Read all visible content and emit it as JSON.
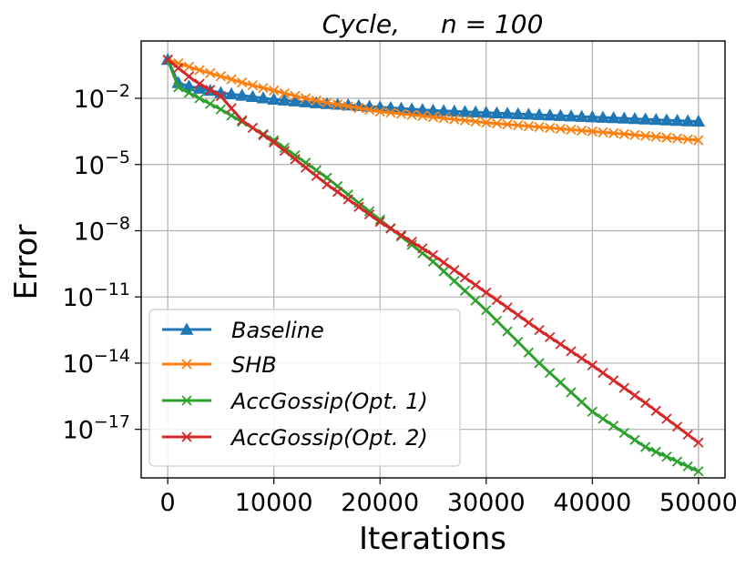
{
  "chart_data": {
    "type": "line",
    "title_italic_part": "Cycle,",
    "title_math_part": "n = 100",
    "xlabel": "Iterations",
    "ylabel": "Error",
    "y_scale": "log",
    "xlim": [
      -2500,
      52500
    ],
    "ylim_log10": [
      -19.2,
      0.6
    ],
    "x_ticks": [
      0,
      10000,
      20000,
      30000,
      40000,
      50000
    ],
    "x_tick_labels": [
      "0",
      "10000",
      "20000",
      "30000",
      "40000",
      "50000"
    ],
    "y_tick_exponents": [
      -2,
      -5,
      -8,
      -11,
      -14,
      -17
    ],
    "y_tick_labels": [
      "10−2",
      "10−5",
      "10−8",
      "10−11",
      "10−14",
      "10−17"
    ],
    "grid": true,
    "legend_placement": "lower-left",
    "series": [
      {
        "name": "Baseline",
        "color": "#1f77b4",
        "marker": "triangle",
        "x": [
          0,
          1000,
          2000,
          3000,
          4000,
          5000,
          10000,
          15000,
          20000,
          25000,
          30000,
          35000,
          40000,
          45000,
          50000
        ],
        "log10_y": [
          -0.25,
          -1.3,
          -1.45,
          -1.55,
          -1.65,
          -1.75,
          -2.05,
          -2.25,
          -2.4,
          -2.55,
          -2.65,
          -2.75,
          -2.85,
          -2.95,
          -3.05
        ]
      },
      {
        "name": "SHB",
        "color": "#ff7f0e",
        "marker": "x",
        "x": [
          0,
          2500,
          5000,
          7500,
          10000,
          12500,
          15000,
          20000,
          25000,
          30000,
          35000,
          40000,
          45000,
          50000
        ],
        "log10_y": [
          -0.25,
          -0.65,
          -1.0,
          -1.35,
          -1.65,
          -1.95,
          -2.2,
          -2.6,
          -2.85,
          -3.1,
          -3.3,
          -3.5,
          -3.7,
          -3.9
        ]
      },
      {
        "name": "AccGossip(Opt. 1)",
        "color": "#2ca02c",
        "marker": "x",
        "x": [
          0,
          1000,
          5000,
          10000,
          15000,
          20000,
          25000,
          30000,
          35000,
          40000,
          45000,
          50000
        ],
        "log10_y": [
          -0.25,
          -1.5,
          -2.5,
          -3.9,
          -5.6,
          -7.5,
          -9.4,
          -11.6,
          -14.0,
          -16.2,
          -17.8,
          -18.9
        ]
      },
      {
        "name": "AccGossip(Opt. 2)",
        "color": "#d62728",
        "marker": "x",
        "x": [
          0,
          2500,
          5000,
          7000,
          10000,
          15000,
          20000,
          25000,
          30000,
          35000,
          40000,
          45000,
          50000
        ],
        "log10_y": [
          -0.25,
          -1.2,
          -1.9,
          -3.0,
          -4.0,
          -5.9,
          -7.6,
          -9.1,
          -10.8,
          -12.5,
          -14.1,
          -15.8,
          -17.6
        ]
      }
    ]
  }
}
